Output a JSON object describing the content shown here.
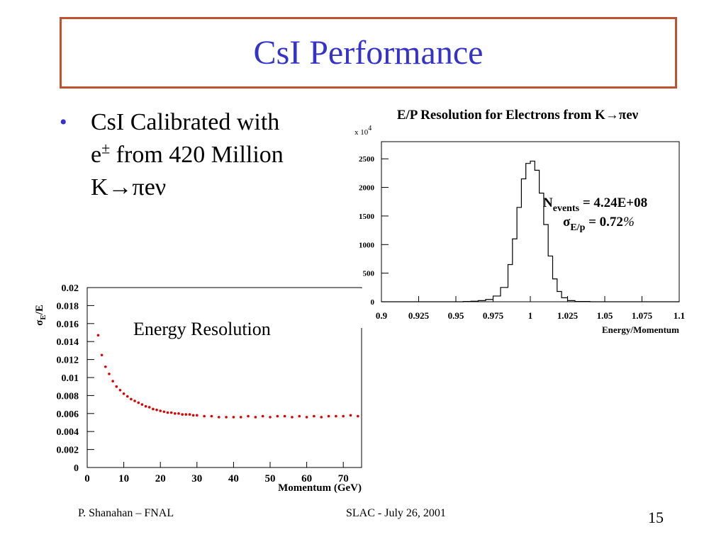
{
  "slide": {
    "title": "CsI Performance",
    "bullet": {
      "line1": "CsI Calibrated with",
      "line2_prefix": "e",
      "line2_sup": "±",
      "line2_rest": " from 420 Million",
      "line3": "K→πeν"
    },
    "footer": {
      "left": "P. Shanahan – FNAL",
      "center": "SLAC  -  July 26, 2001",
      "page": "15"
    },
    "colors": {
      "title": "#3333cc",
      "border": "#c0522e",
      "points": "#e00000"
    }
  },
  "chart_data": [
    {
      "type": "line",
      "title": "E/P Resolution for Electrons from K→πeν",
      "multiplier_label": "x 10",
      "multiplier_exp": "4",
      "xlabel": "Energy/Momentum",
      "ylabel": "",
      "xlim": [
        0.9,
        1.1
      ],
      "ylim": [
        0,
        2800
      ],
      "xticks": [
        "0.9",
        "0.925",
        "0.95",
        "0.975",
        "1",
        "1.025",
        "1.05",
        "1.075",
        "1.1"
      ],
      "yticks": [
        "0",
        "500",
        "1000",
        "1500",
        "2000",
        "2500"
      ],
      "annotation_n_label": "N",
      "annotation_n_sub": "events",
      "annotation_n_value": " = 4.24E+08",
      "annotation_s_label": "σ",
      "annotation_s_sub": "E/p",
      "annotation_s_value": " = 0.72",
      "annotation_s_unit": "%",
      "x": [
        0.9,
        0.94,
        0.955,
        0.96,
        0.965,
        0.97,
        0.975,
        0.98,
        0.985,
        0.988,
        0.991,
        0.994,
        0.997,
        1.0,
        1.003,
        1.006,
        1.009,
        1.012,
        1.015,
        1.018,
        1.021,
        1.025,
        1.03,
        1.04,
        1.1
      ],
      "y": [
        0,
        0,
        5,
        10,
        20,
        40,
        100,
        250,
        650,
        1100,
        1650,
        2150,
        2420,
        2460,
        2300,
        1900,
        1350,
        800,
        400,
        180,
        70,
        20,
        5,
        0,
        0
      ]
    },
    {
      "type": "scatter",
      "title": "Energy Resolution",
      "ylabel": "σE/E",
      "ylabel_main": "σ",
      "ylabel_sub": "E",
      "ylabel_rest": "/E",
      "xlabel": "Momentum (GeV)",
      "xlim": [
        0,
        75
      ],
      "ylim": [
        0,
        0.02
      ],
      "xticks": [
        "0",
        "10",
        "20",
        "30",
        "40",
        "50",
        "60",
        "70"
      ],
      "yticks": [
        "0",
        "0.002",
        "0.004",
        "0.006",
        "0.008",
        "0.01",
        "0.012",
        "0.014",
        "0.016",
        "0.018",
        "0.02"
      ],
      "x": [
        3,
        4,
        5,
        6,
        7,
        8,
        9,
        10,
        11,
        12,
        13,
        14,
        15,
        16,
        17,
        18,
        19,
        20,
        21,
        22,
        23,
        24,
        25,
        26,
        27,
        28,
        29,
        30,
        32,
        34,
        36,
        38,
        40,
        42,
        44,
        46,
        48,
        50,
        52,
        54,
        56,
        58,
        60,
        62,
        64,
        66,
        68,
        70,
        72,
        74
      ],
      "y": [
        0.0147,
        0.0125,
        0.0112,
        0.0104,
        0.0096,
        0.009,
        0.0086,
        0.0082,
        0.0079,
        0.0076,
        0.0074,
        0.0072,
        0.007,
        0.0068,
        0.0067,
        0.0065,
        0.0064,
        0.0063,
        0.0062,
        0.0061,
        0.0061,
        0.006,
        0.006,
        0.0059,
        0.0059,
        0.0059,
        0.0058,
        0.0058,
        0.0057,
        0.0057,
        0.0056,
        0.0056,
        0.0056,
        0.0056,
        0.0057,
        0.0056,
        0.0057,
        0.0056,
        0.0057,
        0.0057,
        0.0056,
        0.0057,
        0.0056,
        0.0057,
        0.0056,
        0.0057,
        0.0057,
        0.0057,
        0.0058,
        0.0057
      ]
    }
  ]
}
